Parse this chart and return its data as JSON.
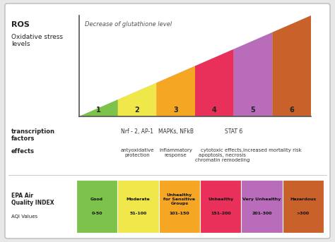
{
  "bg_color": "#e8e8e8",
  "card_color": "#ffffff",
  "title_ros": "ROS",
  "title_oxidative": "Oxidative stress\nlevels",
  "triangle_label": "Decrease of glutathione level",
  "triangle_bg": "#d0cce0",
  "segment_colors": [
    "#7dc24b",
    "#f0e84a",
    "#f5a623",
    "#e8305a",
    "#b86cb9",
    "#c8612a"
  ],
  "segment_labels": [
    "1",
    "2",
    "3",
    "4",
    "5",
    "6"
  ],
  "tf_section_label": "transcription\nfactors",
  "effects_section_label": "effects",
  "tf_labels": [
    "Nrf - 2, AP-1",
    "MAPKs, NFkB",
    "STAT 6"
  ],
  "effect_labels": [
    "antyoxidative\nprotection",
    "inflammatory\nresponse",
    "cytotoxic effects,\napoptosis, necrosis\nchromatin remodeling",
    "increased mortality risk"
  ],
  "aqi_colors": [
    "#7dc24b",
    "#f0e84a",
    "#f5a623",
    "#e8305a",
    "#b86cb9",
    "#c8612a"
  ],
  "aqi_labels": [
    "Good",
    "Moderate",
    "Unhealthy\nfor Sensitive\nGroups",
    "Unhealthy",
    "Very Unhealthy",
    "Hazardous"
  ],
  "aqi_values": [
    "0-50",
    "51-100",
    "101-150",
    "151-200",
    "201-300",
    ">300"
  ],
  "aqi_title_bold": "EPA Air\nQuality INDEX",
  "aqi_title_normal": "AQI Values"
}
